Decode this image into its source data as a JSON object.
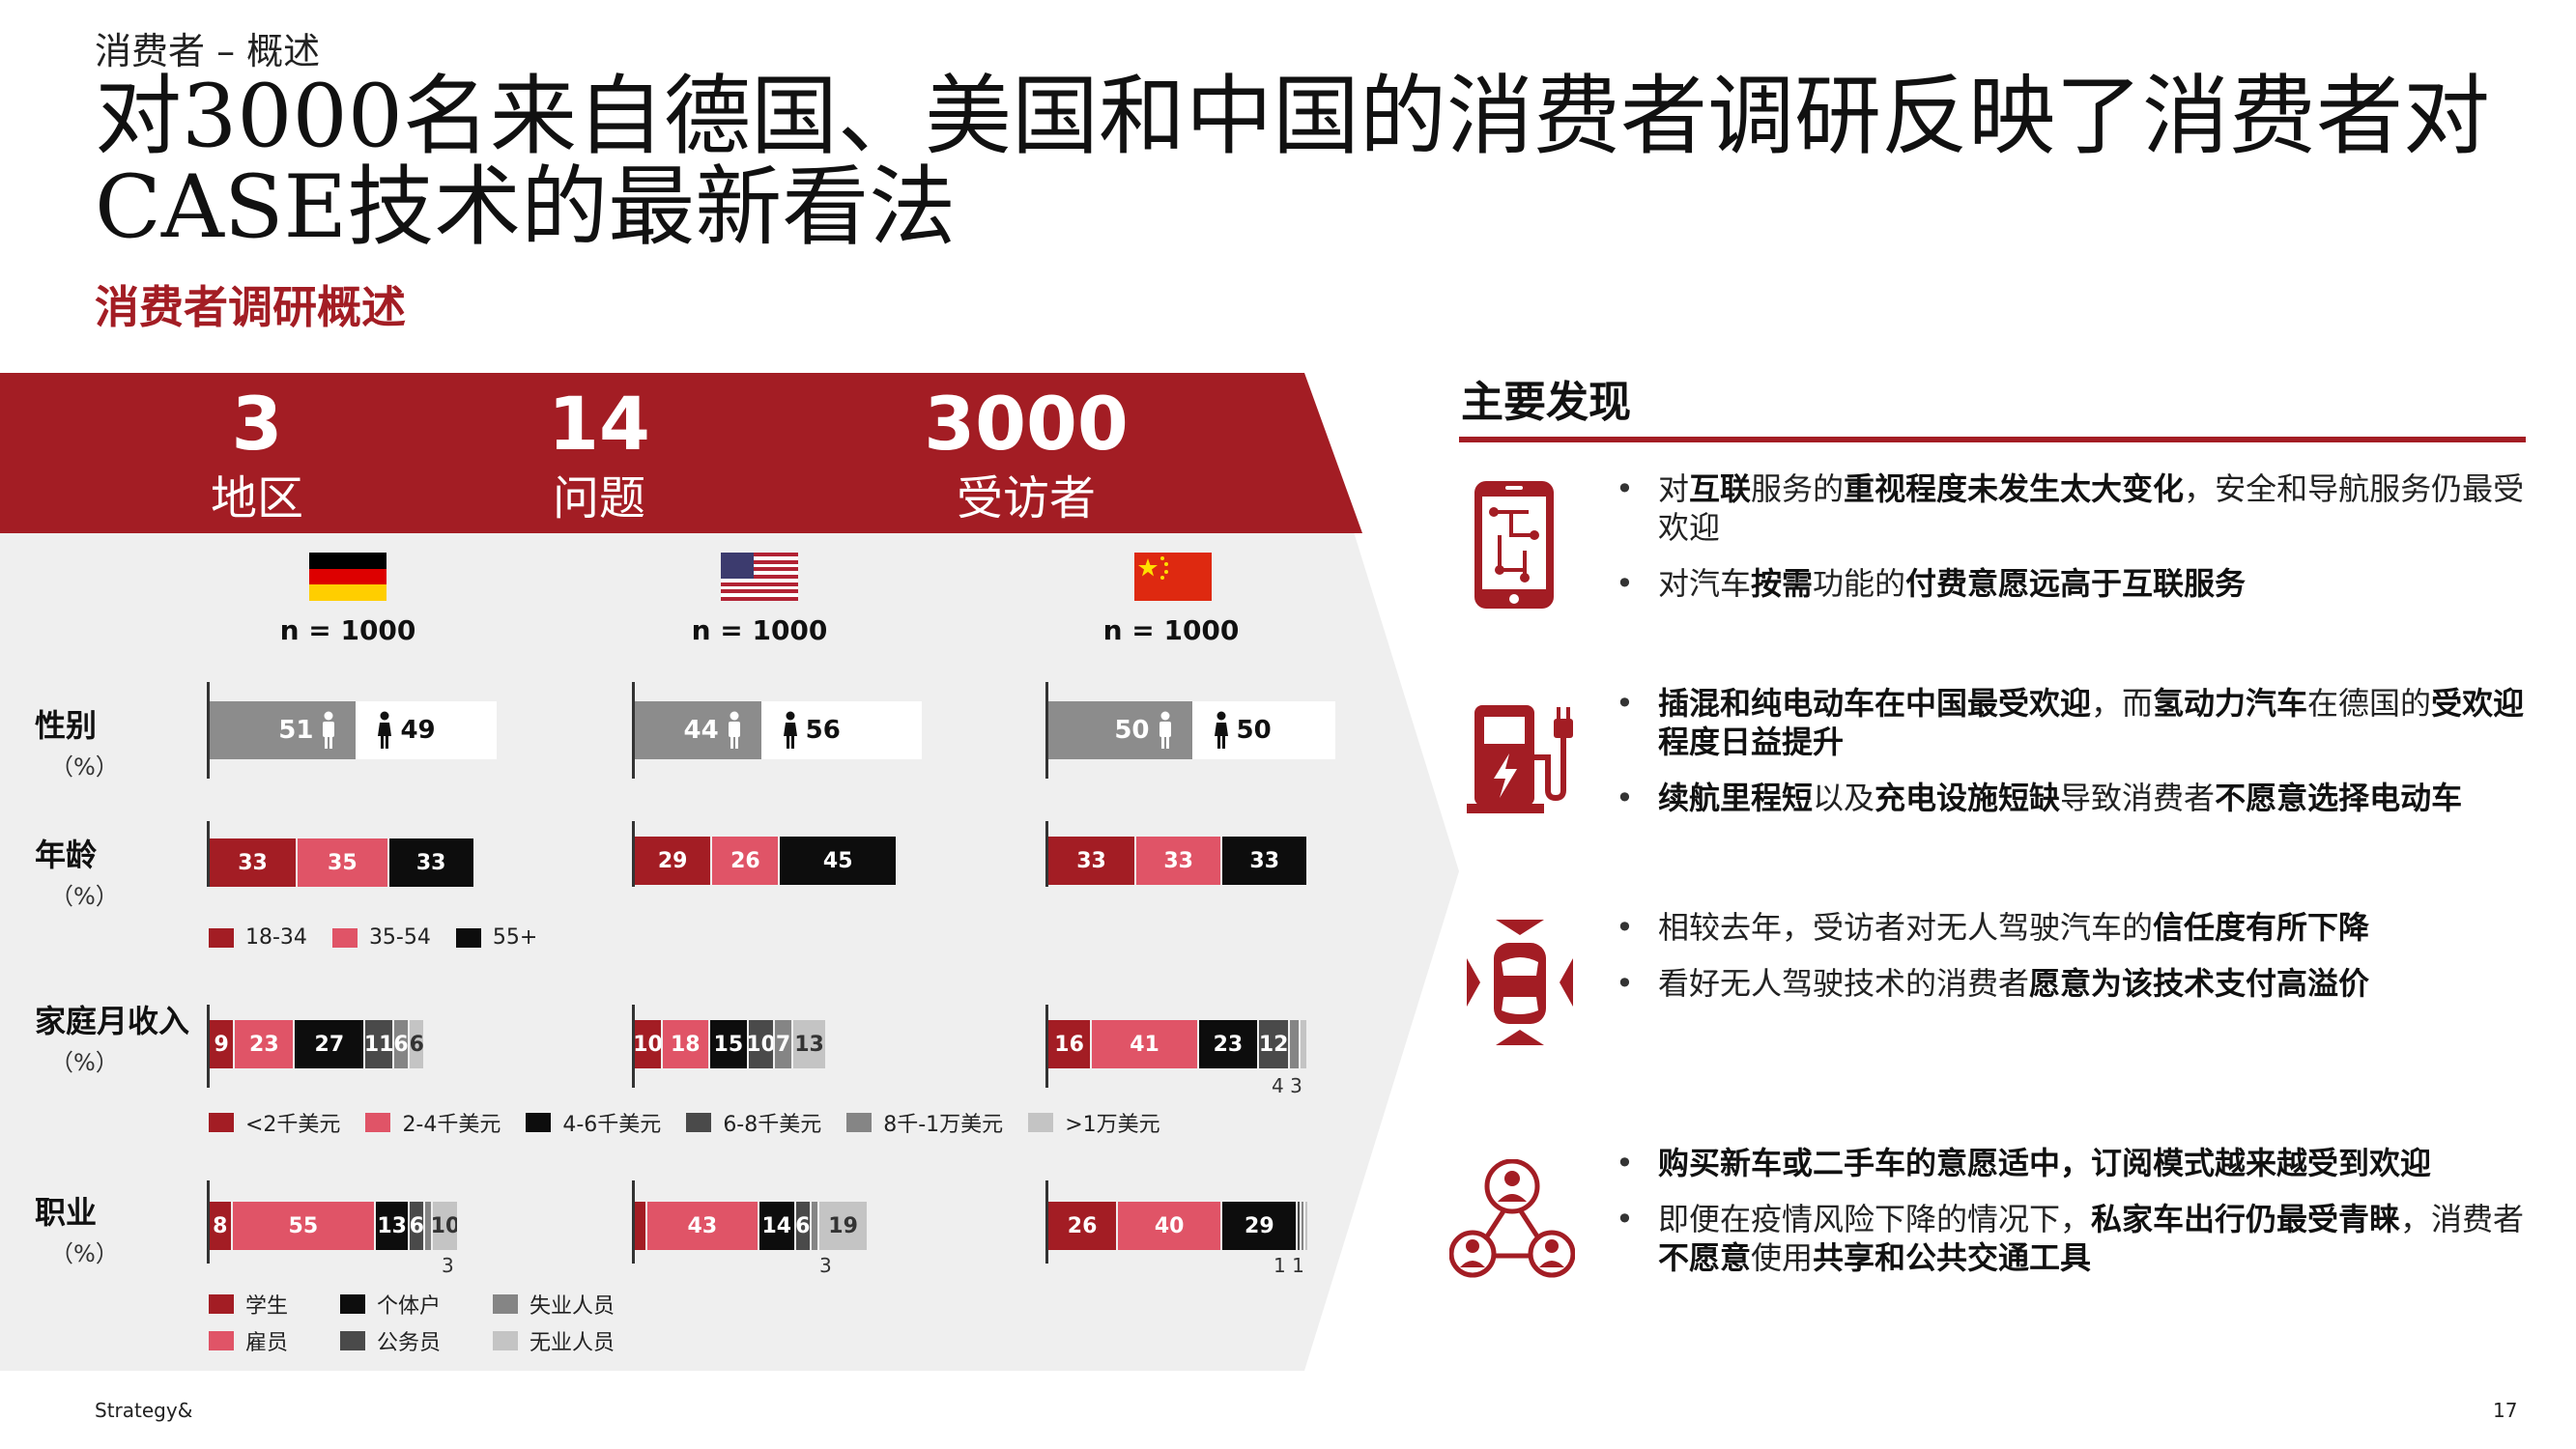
{
  "header": {
    "kicker": "消费者 – 概述",
    "title": "对3000名来自德国、美国和中国的消费者调研反映了消费者对CASE技术的最新看法",
    "subtitle": "消费者调研概述"
  },
  "banner": {
    "stats": [
      {
        "value": "3",
        "label": "地区"
      },
      {
        "value": "14",
        "label": "问题"
      },
      {
        "value": "3000",
        "label": "受访者"
      }
    ]
  },
  "countries": [
    {
      "name": "germany-flag",
      "n": "n = 1000"
    },
    {
      "name": "usa-flag",
      "n": "n = 1000"
    },
    {
      "name": "china-flag",
      "n": "n = 1000"
    }
  ],
  "rows": {
    "gender": {
      "label": "性别",
      "unit": "（%）"
    },
    "age": {
      "label": "年龄",
      "unit": "（%）"
    },
    "income": {
      "label": "家庭月收入",
      "unit": "（%）"
    },
    "job": {
      "label": "职业",
      "unit": "（%）"
    }
  },
  "colors": {
    "dark_red": "#a31d24",
    "pink": "#e05467",
    "black": "#0d0d0d",
    "dark_grey": "#4a4a4a",
    "mid_grey": "#858585",
    "light_grey": "#c4c4c4"
  },
  "chart_data": {
    "type": "bar",
    "gender": {
      "series": [
        "male",
        "female"
      ],
      "values": {
        "germany": [
          51,
          49
        ],
        "usa": [
          44,
          56
        ],
        "china": [
          50,
          50
        ]
      }
    },
    "age": {
      "series": [
        "18-34",
        "35-54",
        "55+"
      ],
      "values": {
        "germany": [
          33,
          35,
          33
        ],
        "usa": [
          29,
          26,
          45
        ],
        "china": [
          33,
          33,
          33
        ]
      }
    },
    "income": {
      "series": [
        "<2千美元",
        "2-4千美元",
        "4-6千美元",
        "6-8千美元",
        "8千-1万美元",
        ">1万美元"
      ],
      "values": {
        "germany": [
          9,
          23,
          27,
          11,
          6,
          6
        ],
        "usa": [
          10,
          18,
          15,
          10,
          7,
          13
        ],
        "china": [
          16,
          41,
          23,
          12,
          4,
          3
        ]
      },
      "notes": {
        "china": "4 3"
      }
    },
    "job": {
      "series": [
        "学生",
        "雇员",
        "个体户",
        "公务员",
        "失业人员",
        "无业人员"
      ],
      "values": {
        "germany": [
          8,
          55,
          13,
          6,
          3,
          10
        ],
        "usa": [
          4,
          43,
          14,
          6,
          3,
          19
        ],
        "china": [
          26,
          40,
          29,
          1,
          1,
          1
        ]
      },
      "notes": {
        "germany": "3",
        "usa": "3",
        "china": "1 1"
      }
    }
  },
  "legends": {
    "age": [
      "18-34",
      "35-54",
      "55+"
    ],
    "income": [
      "<2千美元",
      "2-4千美元",
      "4-6千美元",
      "6-8千美元",
      "8千-1万美元",
      ">1万美元"
    ],
    "job_row1": [
      "学生",
      "个体户",
      "失业人员"
    ],
    "job_row2": [
      "雇员",
      "公务员",
      "无业人员"
    ]
  },
  "findings": {
    "title": "主要发现",
    "groups": [
      {
        "icon": "phone-icon",
        "bullets": [
          [
            {
              "t": "对"
            },
            {
              "b": "互联"
            },
            {
              "t": "服务的"
            },
            {
              "b": "重视程度未发生太大变化"
            },
            {
              "t": "，安全和导航服务仍最受欢迎"
            }
          ],
          [
            {
              "t": "对汽车"
            },
            {
              "b": "按需"
            },
            {
              "t": "功能的"
            },
            {
              "b": "付费意愿远高于互联服务"
            }
          ]
        ]
      },
      {
        "icon": "charging-station-icon",
        "bullets": [
          [
            {
              "b": "插混和纯电动车在中国最受欢迎"
            },
            {
              "t": "，而"
            },
            {
              "b": "氢动力汽车"
            },
            {
              "t": "在德国的"
            },
            {
              "b": "受欢迎程度日益提升"
            }
          ],
          [
            {
              "b": "续航里程短"
            },
            {
              "t": "以及"
            },
            {
              "b": "充电设施短缺"
            },
            {
              "t": "导致消费者"
            },
            {
              "b": "不愿意选择电动车"
            }
          ]
        ]
      },
      {
        "icon": "autonomous-car-icon",
        "bullets": [
          [
            {
              "t": "相较去年，受访者对无人驾驶汽车的"
            },
            {
              "b": "信任度有所下降"
            }
          ],
          [
            {
              "t": "看好无人驾驶技术的消费者"
            },
            {
              "b": "愿意为该技术支付高溢价"
            }
          ]
        ]
      },
      {
        "icon": "network-people-icon",
        "bullets": [
          [
            {
              "b": "购买新车或二手车的意愿适中，订阅模式越来越受到欢迎"
            }
          ],
          [
            {
              "t": "即便在疫情风险下降的情况下，"
            },
            {
              "b": "私家车出行仍最受青睐"
            },
            {
              "t": "，消费者"
            },
            {
              "b": "不愿意"
            },
            {
              "t": "使用"
            },
            {
              "b": "共享和公共交通工具"
            }
          ]
        ]
      }
    ]
  },
  "footer": {
    "brand": "Strategy&",
    "page": "17"
  }
}
